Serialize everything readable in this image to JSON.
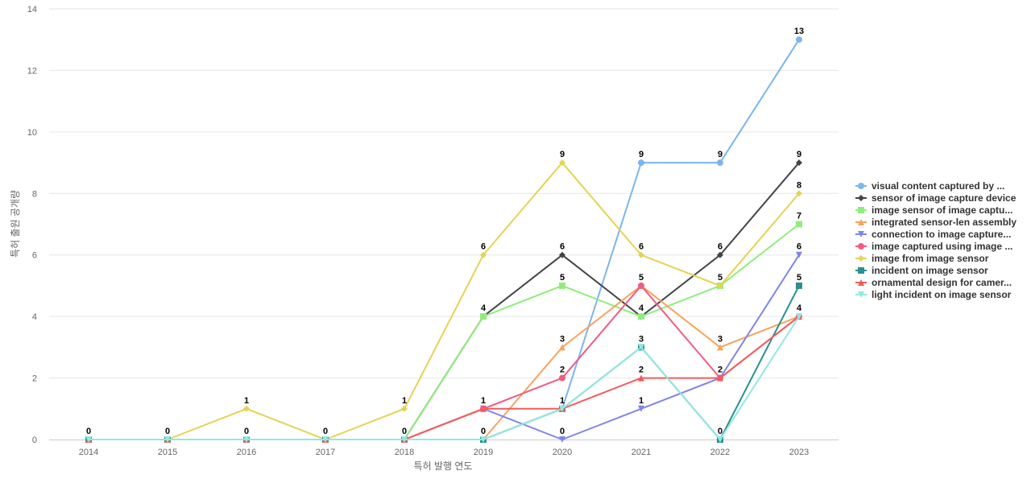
{
  "chart_data": {
    "type": "line",
    "title": "",
    "xlabel": "특허 발행 연도",
    "ylabel": "특허 출원 공개량",
    "ylim": [
      0,
      14
    ],
    "yticks": [
      0,
      2,
      4,
      6,
      8,
      10,
      12,
      14
    ],
    "grid": true,
    "legend_position": "right",
    "x": [
      "2014",
      "2015",
      "2016",
      "2017",
      "2018",
      "2019",
      "2020",
      "2021",
      "2022",
      "2023"
    ],
    "series": [
      {
        "name": "visual content captured by ...",
        "color": "#7cb5ec",
        "marker": "circle",
        "values": [
          0,
          0,
          0,
          0,
          0,
          0,
          1,
          9,
          9,
          13
        ]
      },
      {
        "name": "sensor of image capture device",
        "color": "#434348",
        "marker": "diamond",
        "values": [
          0,
          0,
          0,
          0,
          0,
          4,
          6,
          4,
          6,
          9
        ]
      },
      {
        "name": "image sensor of image captu...",
        "color": "#90ed7d",
        "marker": "square",
        "values": [
          0,
          0,
          0,
          0,
          0,
          4,
          5,
          4,
          5,
          7
        ]
      },
      {
        "name": "integrated sensor-len assembly",
        "color": "#f7a35c",
        "marker": "triangle",
        "values": [
          0,
          0,
          0,
          0,
          0,
          0,
          3,
          5,
          3,
          4
        ]
      },
      {
        "name": "connection to image capture...",
        "color": "#8085e9",
        "marker": "triangle-down",
        "values": [
          0,
          0,
          0,
          0,
          0,
          1,
          0,
          1,
          2,
          6
        ]
      },
      {
        "name": "image captured using image ...",
        "color": "#f15c80",
        "marker": "circle",
        "values": [
          0,
          0,
          0,
          0,
          0,
          1,
          2,
          5,
          2,
          4
        ]
      },
      {
        "name": "image from image sensor",
        "color": "#e4d354",
        "marker": "diamond",
        "values": [
          0,
          0,
          1,
          0,
          1,
          6,
          9,
          6,
          5,
          8
        ]
      },
      {
        "name": "incident on image sensor",
        "color": "#2b908f",
        "marker": "square",
        "values": [
          0,
          0,
          0,
          0,
          0,
          0,
          1,
          3,
          0,
          5
        ]
      },
      {
        "name": "ornamental design for camer...",
        "color": "#f45b5b",
        "marker": "triangle",
        "values": [
          0,
          0,
          0,
          0,
          0,
          1,
          1,
          2,
          2,
          4
        ]
      },
      {
        "name": "light incident on image sensor",
        "color": "#91e8e1",
        "marker": "triangle-down",
        "values": [
          0,
          0,
          0,
          0,
          0,
          0,
          1,
          3,
          0,
          4
        ]
      }
    ],
    "data_labels": [
      {
        "x": "2014",
        "value": 0
      },
      {
        "x": "2015",
        "value": 0
      },
      {
        "x": "2016",
        "value": 1
      },
      {
        "x": "2016",
        "value": 0
      },
      {
        "x": "2017",
        "value": 0
      },
      {
        "x": "2018",
        "value": 1
      },
      {
        "x": "2018",
        "value": 0
      },
      {
        "x": "2019",
        "value": 6
      },
      {
        "x": "2019",
        "value": 4
      },
      {
        "x": "2019",
        "value": 1
      },
      {
        "x": "2019",
        "value": 0
      },
      {
        "x": "2020",
        "value": 9
      },
      {
        "x": "2020",
        "value": 6
      },
      {
        "x": "2020",
        "value": 5
      },
      {
        "x": "2020",
        "value": 3
      },
      {
        "x": "2020",
        "value": 2
      },
      {
        "x": "2020",
        "value": 1
      },
      {
        "x": "2020",
        "value": 0
      },
      {
        "x": "2021",
        "value": 9
      },
      {
        "x": "2021",
        "value": 6
      },
      {
        "x": "2021",
        "value": 5
      },
      {
        "x": "2021",
        "value": 4
      },
      {
        "x": "2021",
        "value": 3
      },
      {
        "x": "2021",
        "value": 2
      },
      {
        "x": "2021",
        "value": 1
      },
      {
        "x": "2022",
        "value": 9
      },
      {
        "x": "2022",
        "value": 6
      },
      {
        "x": "2022",
        "value": 5
      },
      {
        "x": "2022",
        "value": 3
      },
      {
        "x": "2022",
        "value": 2
      },
      {
        "x": "2022",
        "value": 0
      },
      {
        "x": "2023",
        "value": 13
      },
      {
        "x": "2023",
        "value": 9
      },
      {
        "x": "2023",
        "value": 8
      },
      {
        "x": "2023",
        "value": 7
      },
      {
        "x": "2023",
        "value": 6
      },
      {
        "x": "2023",
        "value": 5
      },
      {
        "x": "2023",
        "value": 4
      }
    ]
  }
}
